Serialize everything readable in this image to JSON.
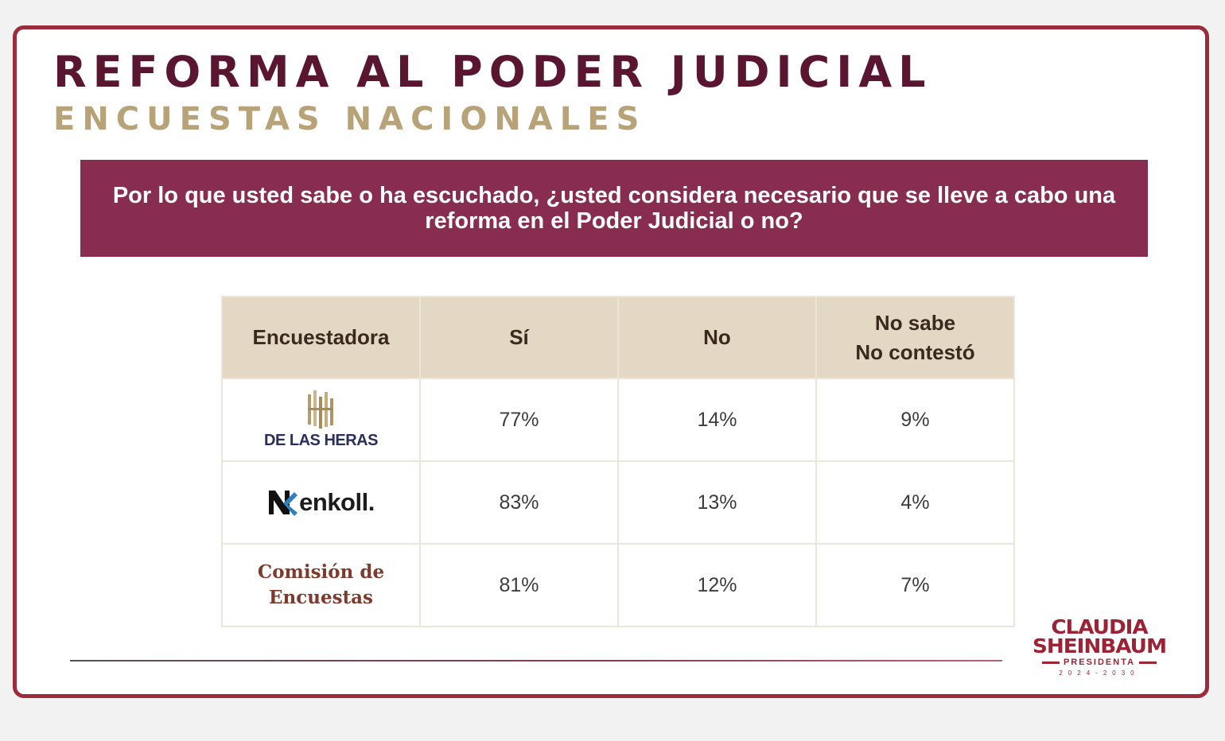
{
  "slide": {
    "title": "REFORMA AL PODER JUDICIAL",
    "subtitle": "ENCUESTAS NACIONALES",
    "question": "Por lo que usted sabe o ha escuchado, ¿usted considera necesario que se lleve a cabo una reforma en el Poder Judicial o no?"
  },
  "table": {
    "headers": {
      "pollster": "Encuestadora",
      "yes": "Sí",
      "no": "No",
      "unknown_line1": "No sabe",
      "unknown_line2": "No contestó"
    },
    "rows": [
      {
        "pollster": "DE LAS HERAS",
        "logo": "de-las-heras-logo",
        "yes": "77%",
        "no": "14%",
        "unknown": "9%"
      },
      {
        "pollster": "enkoll.",
        "logo": "enkoll-logo",
        "yes": "83%",
        "no": "13%",
        "unknown": "4%"
      },
      {
        "pollster_line1": "Comisión de",
        "pollster_line2": "Encuestas",
        "yes": "81%",
        "no": "12%",
        "unknown": "7%"
      }
    ]
  },
  "brand": {
    "name_line1": "CLAUDIA",
    "name_line2": "SHEINBAUM",
    "role": "PRESIDENTA",
    "years": "2024-2030"
  },
  "colors": {
    "frame": "#9b2c3b",
    "title": "#5a1630",
    "subtitle": "#b8a378",
    "question_band": "#882d50",
    "table_header": "#e2d8c4",
    "brand": "#9b2335"
  }
}
